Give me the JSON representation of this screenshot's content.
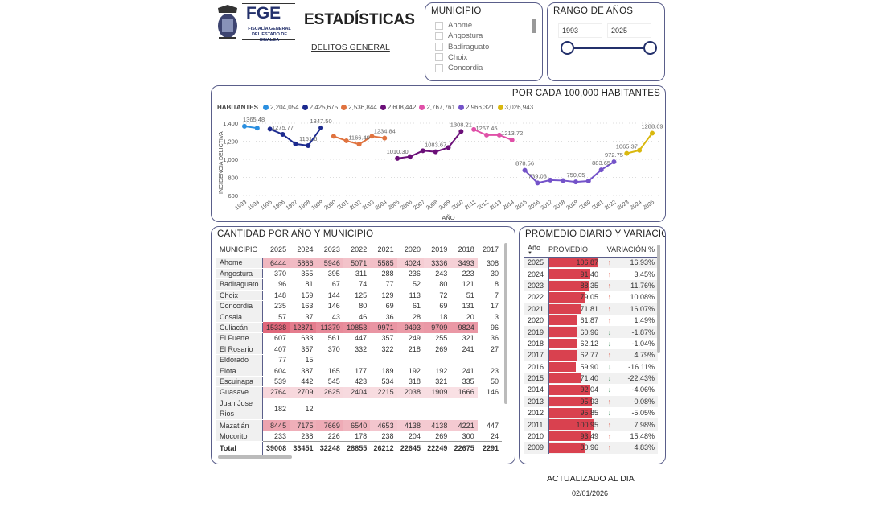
{
  "header": {
    "logo_text": "FGE",
    "logo_subtext": "FISCALÍA GENERAL DEL ESTADO DE SINALOA",
    "title": "ESTADÍSTICAS",
    "subtitle": "DELITOS GENERAL"
  },
  "municipio_filter": {
    "title": "MUNICIPIO",
    "items": [
      "Ahome",
      "Angostura",
      "Badiraguato",
      "Choix",
      "Concordia"
    ]
  },
  "rango": {
    "title": "RANGO DE AÑOS",
    "from": "1993",
    "to": "2025"
  },
  "chart_data": {
    "type": "line",
    "title": "POR CADA 100,000 HABITANTES",
    "legend_title": "HABITANTES",
    "xlabel": "AÑO",
    "ylabel": "INCIDENCIA DELICTIVA",
    "ylim": [
      600,
      1400
    ],
    "yticks": [
      "600",
      "800",
      "1,000",
      "1,200",
      "1,400"
    ],
    "legend_position": "top-left",
    "grid": true,
    "series": [
      {
        "name": "2,204,054",
        "color": "#2b8fe0",
        "x": [
          1993,
          1994
        ],
        "values": [
          1365.48,
          1345
        ],
        "labels": [
          "1365.48",
          null
        ]
      },
      {
        "name": "2,425,675",
        "color": "#1c2a8f",
        "x": [
          1995,
          1996,
          1997,
          1998,
          1999
        ],
        "values": [
          1335,
          1275.77,
          1170,
          1151.6,
          1347.5
        ],
        "labels": [
          null,
          "1275.77",
          null,
          "1151.6",
          "1347.50"
        ]
      },
      {
        "name": "2,536,844",
        "color": "#e0733f",
        "x": [
          2000,
          2001,
          2002,
          2003,
          2004
        ],
        "values": [
          1255,
          1205,
          1166.49,
          1255,
          1234.84
        ],
        "labels": [
          null,
          null,
          "1166.49",
          null,
          "1234.84"
        ]
      },
      {
        "name": "2,608,442",
        "color": "#6b0f78",
        "x": [
          2005,
          2006,
          2007,
          2008,
          2009,
          2010
        ],
        "values": [
          1010.3,
          1030,
          1095,
          1083.67,
          1130,
          1308.21
        ],
        "labels": [
          "1010.30",
          null,
          null,
          "1083.67",
          null,
          "1308.21"
        ]
      },
      {
        "name": "2,767,761",
        "color": "#e050a8",
        "x": [
          2011,
          2012,
          2013,
          2014
        ],
        "values": [
          1330,
          1267.45,
          1268,
          1213.72
        ],
        "labels": [
          null,
          "1267.45",
          null,
          "1213.72"
        ]
      },
      {
        "name": "2,966,321",
        "color": "#7453c9",
        "x": [
          2015,
          2016,
          2017,
          2018,
          2019,
          2020,
          2021,
          2022
        ],
        "values": [
          878.56,
          739.03,
          770,
          765,
          750.05,
          760,
          883.65,
          972.75
        ],
        "labels": [
          "878.56",
          "739.03",
          null,
          null,
          "750.05",
          null,
          "883.65",
          "972.75"
        ]
      },
      {
        "name": "3,026,943",
        "color": "#d9b80f",
        "x": [
          2023,
          2024,
          2025
        ],
        "values": [
          1065.37,
          1100,
          1288.69
        ],
        "labels": [
          "1065.37",
          null,
          "1288.69"
        ]
      }
    ]
  },
  "cantidad": {
    "title": "CANTIDAD POR AÑO Y MUNICIPIO",
    "headers": [
      "MUNICIPIO",
      "2025",
      "2024",
      "2023",
      "2022",
      "2021",
      "2020",
      "2019",
      "2018",
      "2017"
    ],
    "rows": [
      [
        "Ahome",
        "6444",
        "5866",
        "5946",
        "5071",
        "5585",
        "4024",
        "3336",
        "3493",
        "308"
      ],
      [
        "Angostura",
        "370",
        "355",
        "395",
        "311",
        "288",
        "236",
        "243",
        "223",
        "30"
      ],
      [
        "Badiraguato",
        "96",
        "81",
        "67",
        "74",
        "77",
        "52",
        "80",
        "121",
        "8"
      ],
      [
        "Choix",
        "148",
        "159",
        "144",
        "125",
        "129",
        "113",
        "72",
        "51",
        "7"
      ],
      [
        "Concordia",
        "235",
        "163",
        "146",
        "80",
        "69",
        "61",
        "69",
        "131",
        "17"
      ],
      [
        "Cosala",
        "57",
        "37",
        "43",
        "46",
        "36",
        "28",
        "18",
        "20",
        "3"
      ],
      [
        "Culiacán",
        "15338",
        "12871",
        "11379",
        "10853",
        "9971",
        "9493",
        "9709",
        "9824",
        "96"
      ],
      [
        "El Fuerte",
        "607",
        "633",
        "561",
        "447",
        "357",
        "249",
        "255",
        "321",
        "36"
      ],
      [
        "El Rosario",
        "407",
        "357",
        "370",
        "332",
        "322",
        "218",
        "269",
        "241",
        "27"
      ],
      [
        "Eldorado",
        "77",
        "15",
        "",
        "",
        "",
        "",
        "",
        "",
        ""
      ],
      [
        "Elota",
        "604",
        "387",
        "165",
        "177",
        "189",
        "192",
        "192",
        "241",
        "23"
      ],
      [
        "Escuinapa",
        "539",
        "442",
        "545",
        "423",
        "534",
        "318",
        "321",
        "335",
        "50"
      ],
      [
        "Guasave",
        "2764",
        "2709",
        "2625",
        "2404",
        "2215",
        "2038",
        "1909",
        "1666",
        "146"
      ],
      [
        "Juan Jose Rios",
        "182",
        "12",
        "",
        "",
        "",
        "",
        "",
        "",
        ""
      ],
      [
        "Mazatlán",
        "8445",
        "7175",
        "7669",
        "6540",
        "4653",
        "4138",
        "4138",
        "4221",
        "447"
      ],
      [
        "Mocorito",
        "233",
        "238",
        "226",
        "178",
        "238",
        "204",
        "269",
        "300",
        "24"
      ]
    ],
    "total": [
      "Total",
      "39008",
      "33451",
      "32248",
      "28855",
      "26212",
      "22645",
      "22249",
      "22675",
      "2291"
    ]
  },
  "promedio": {
    "title": "PROMEDIO DIARIO Y VARIACION",
    "headers": [
      "Año",
      "PROMEDIO",
      "VARIACIÓN %"
    ],
    "rows": [
      [
        "2025",
        "106.87",
        "up",
        "16.93%"
      ],
      [
        "2024",
        "91.40",
        "up",
        "3.45%"
      ],
      [
        "2023",
        "88.35",
        "up",
        "11.76%"
      ],
      [
        "2022",
        "79.05",
        "up",
        "10.08%"
      ],
      [
        "2021",
        "71.81",
        "up",
        "16.07%"
      ],
      [
        "2020",
        "61.87",
        "up",
        "1.49%"
      ],
      [
        "2019",
        "60.96",
        "down",
        "-1.87%"
      ],
      [
        "2018",
        "62.12",
        "down",
        "-1.04%"
      ],
      [
        "2017",
        "62.77",
        "up",
        "4.79%"
      ],
      [
        "2016",
        "59.90",
        "down",
        "-16.11%"
      ],
      [
        "2015",
        "71.40",
        "down",
        "-22.43%"
      ],
      [
        "2014",
        "92.04",
        "down",
        "-4.06%"
      ],
      [
        "2013",
        "95.93",
        "up",
        "0.08%"
      ],
      [
        "2012",
        "95.85",
        "down",
        "-5.05%"
      ],
      [
        "2011",
        "100.95",
        "up",
        "7.98%"
      ],
      [
        "2010",
        "93.49",
        "up",
        "15.48%"
      ],
      [
        "2009",
        "80.96",
        "up",
        "4.83%"
      ]
    ],
    "colors": {
      "bar": "#d9414f",
      "up": "#d9412f",
      "down": "#3d8a5a"
    }
  },
  "footer": {
    "label": "ACTUALIZADO AL DIA",
    "date": "02/01/2026"
  }
}
